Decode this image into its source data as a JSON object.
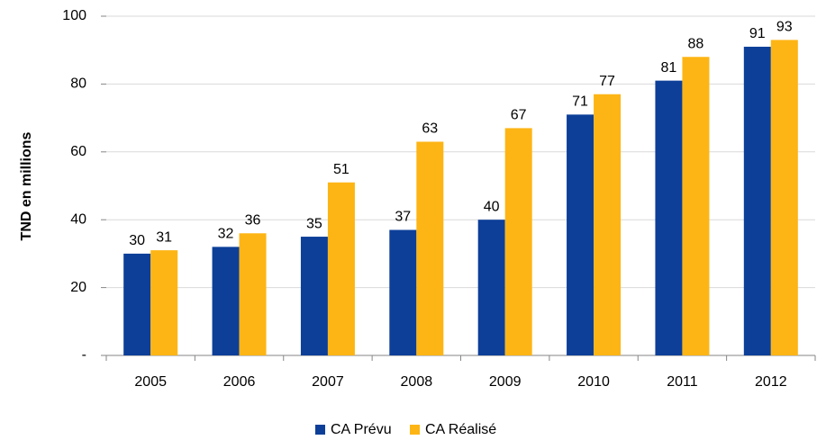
{
  "chart_data": {
    "type": "bar",
    "y_label": "TND en millions",
    "categories": [
      "2005",
      "2006",
      "2007",
      "2008",
      "2009",
      "2010",
      "2011",
      "2012"
    ],
    "series": [
      {
        "name": "CA Prévu",
        "color": "#0d3f99",
        "values": [
          30,
          32,
          35,
          37,
          40,
          71,
          81,
          91
        ]
      },
      {
        "name": "CA Réalisé",
        "color": "#fdb515",
        "values": [
          31,
          36,
          51,
          63,
          67,
          77,
          88,
          93
        ]
      }
    ],
    "ylim": [
      0,
      100
    ],
    "yticks": [
      {
        "value": 0,
        "label": "-"
      },
      20,
      40,
      60,
      80,
      100
    ],
    "grid": true,
    "legend": "bottom"
  }
}
